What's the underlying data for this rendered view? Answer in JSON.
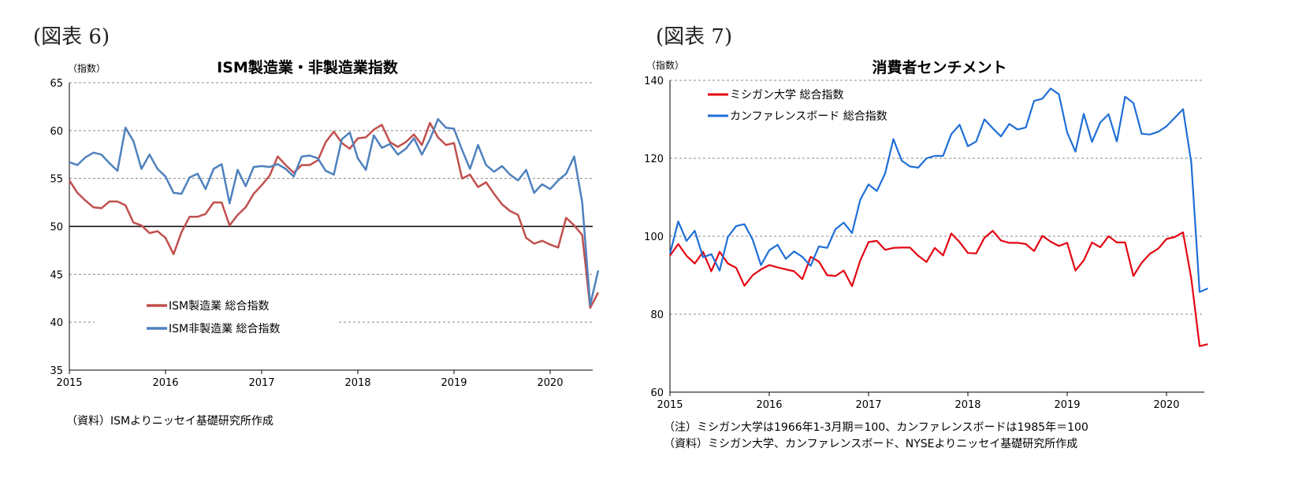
{
  "figures": [
    {
      "label": "(図表 6)"
    },
    {
      "label": "(図表 7)"
    }
  ],
  "notes": {
    "fig6_source": "（資料）ISMよりニッセイ基礎研究所作成",
    "fig7_note": "（注）ミシガン大学は1966年1-3月期＝100、カンファレンスボードは1985年＝100",
    "fig7_source": "（資料）ミシガン大学、カンファレンスボード、NYSEよりニッセイ基礎研究所作成"
  },
  "chart_data": [
    {
      "type": "line",
      "title": "ISM製造業・非製造業指数",
      "ylabel": "（指数）",
      "xlabel": "",
      "ylim": [
        35,
        65
      ],
      "yticks": [
        35,
        40,
        45,
        50,
        55,
        60,
        65
      ],
      "x_start": "2015-01",
      "x_ticks": [
        "2015",
        "2016",
        "2017",
        "2018",
        "2019",
        "2020"
      ],
      "reference_line": 50,
      "grid": "horizontal dashed",
      "legend_position": "bottom-left",
      "colors": {
        "ISM製造業 総合指数": "#c0504d",
        "ISM非製造業 総合指数": "#4f81bd"
      },
      "series": [
        {
          "name": "ISM製造業 総合指数",
          "values": [
            54.8,
            53.5,
            52.7,
            52.0,
            51.9,
            52.6,
            52.6,
            52.2,
            50.4,
            50.1,
            49.3,
            49.5,
            48.8,
            47.1,
            49.4,
            51.0,
            51.0,
            51.3,
            52.5,
            52.5,
            50.1,
            51.2,
            52.0,
            53.4,
            54.3,
            55.3,
            57.3,
            56.4,
            55.6,
            56.4,
            56.4,
            56.9,
            58.8,
            59.9,
            58.7,
            58.1,
            59.2,
            59.3,
            60.1,
            60.6,
            58.8,
            58.3,
            58.8,
            59.6,
            58.5,
            60.8,
            59.3,
            58.5,
            58.7,
            55.0,
            55.4,
            54.1,
            54.6,
            53.4,
            52.3,
            51.6,
            51.2,
            48.8,
            48.2,
            48.5,
            48.1,
            47.8,
            50.9,
            50.1,
            49.1,
            41.5,
            43.1
          ]
        },
        {
          "name": "ISM非製造業 総合指数",
          "values": [
            56.7,
            56.4,
            57.2,
            57.7,
            57.5,
            56.6,
            55.8,
            60.3,
            58.9,
            56.0,
            57.5,
            56.0,
            55.2,
            53.5,
            53.4,
            55.1,
            55.5,
            53.9,
            56.0,
            56.5,
            52.4,
            55.9,
            54.2,
            56.2,
            56.3,
            56.2,
            56.5,
            56.0,
            55.2,
            57.3,
            57.4,
            57.1,
            55.8,
            55.4,
            59.1,
            59.8,
            57.1,
            55.9,
            59.5,
            58.2,
            58.6,
            57.5,
            58.1,
            59.2,
            57.5,
            59.1,
            61.2,
            60.3,
            60.2,
            58.0,
            56.0,
            58.5,
            56.4,
            55.7,
            56.3,
            55.4,
            54.8,
            55.9,
            53.5,
            54.4,
            53.9,
            54.8,
            55.5,
            57.3,
            52.5,
            41.8,
            45.4
          ]
        }
      ]
    },
    {
      "type": "line",
      "title": "消費者センチメント",
      "ylabel": "（指数）",
      "xlabel": "",
      "ylim": [
        60,
        140
      ],
      "yticks": [
        60,
        80,
        100,
        120,
        140
      ],
      "x_start": "2015-01",
      "x_ticks": [
        "2015",
        "2016",
        "2017",
        "2018",
        "2019",
        "2020"
      ],
      "grid": "horizontal dashed",
      "legend_position": "top-left",
      "colors": {
        "ミシガン大学 総合指数": "#e30613",
        "カンファレンスボード 総合指数": "#1f6fd6"
      },
      "series": [
        {
          "name": "ミシガン大学 総合指数",
          "values": [
            95.0,
            98.0,
            95.0,
            93.0,
            96.0,
            91.0,
            96.0,
            93.0,
            91.9,
            87.3,
            90.0,
            91.5,
            92.6,
            92.0,
            91.5,
            91.0,
            89.0,
            94.7,
            93.5,
            90.0,
            89.8,
            91.2,
            87.2,
            93.8,
            98.5,
            98.8,
            96.5,
            97.0,
            97.1,
            97.1,
            95.0,
            93.4,
            97.0,
            95.1,
            100.7,
            98.5,
            95.7,
            95.6,
            99.6,
            101.4,
            98.9,
            98.3,
            98.3,
            98.0,
            96.2,
            100.1,
            98.6,
            97.5,
            98.3,
            91.2,
            93.8,
            98.4,
            97.2,
            100.0,
            98.4,
            98.4,
            89.8,
            93.2,
            95.5,
            96.8,
            99.3,
            99.8,
            101.0,
            89.1,
            71.8,
            72.3
          ]
        },
        {
          "name": "カンファレンスボード 総合指数",
          "values": [
            95.5,
            103.8,
            98.8,
            101.4,
            94.6,
            95.4,
            91.2,
            99.8,
            102.6,
            103.1,
            99.1,
            92.6,
            96.4,
            97.8,
            94.2,
            96.1,
            94.7,
            92.4,
            97.4,
            97.0,
            101.8,
            103.5,
            100.8,
            109.4,
            113.3,
            111.6,
            116.1,
            124.9,
            119.4,
            117.9,
            117.6,
            120.0,
            120.6,
            120.6,
            126.2,
            128.6,
            123.1,
            124.3,
            130.0,
            127.7,
            125.6,
            128.8,
            127.4,
            127.9,
            134.7,
            135.3,
            137.9,
            136.4,
            126.6,
            121.7,
            131.4,
            124.2,
            129.2,
            131.3,
            124.3,
            135.8,
            134.2,
            126.3,
            126.1,
            126.8,
            128.2,
            130.4,
            132.6,
            118.8,
            85.7,
            86.6
          ]
        }
      ]
    }
  ]
}
